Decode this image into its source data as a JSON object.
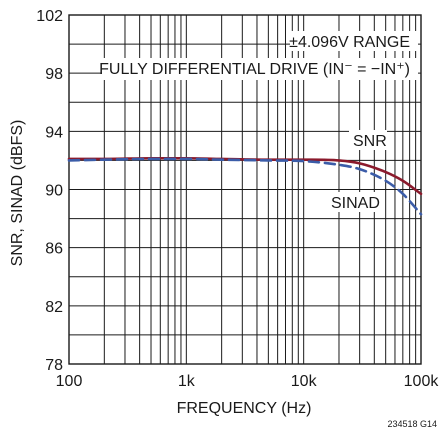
{
  "chart_data": {
    "type": "line",
    "xscale": "log",
    "xlim": [
      100,
      100000
    ],
    "ylim": [
      78,
      102
    ],
    "xlabel": "FREQUENCY (Hz)",
    "ylabel": "SNR, SINAD (dBFS)",
    "xticks": [
      100,
      1000,
      10000,
      100000
    ],
    "xtick_labels": [
      "100",
      "1k",
      "10k",
      "100k"
    ],
    "yticks": [
      78,
      82,
      86,
      90,
      94,
      98,
      102
    ],
    "ytick_labels": [
      "78",
      "82",
      "86",
      "90",
      "94",
      "98",
      "102"
    ],
    "grid": true,
    "series": [
      {
        "name": "SNR",
        "color": "#8b1a2c",
        "style": "solid",
        "x": [
          100,
          200,
          500,
          1000,
          2000,
          5000,
          10000,
          20000,
          30000,
          50000,
          70000,
          100000
        ],
        "y": [
          92.1,
          92.1,
          92.15,
          92.15,
          92.1,
          92.05,
          92.05,
          92.0,
          91.8,
          91.2,
          90.6,
          89.7
        ]
      },
      {
        "name": "SINAD",
        "color": "#3b5ca8",
        "style": "dashed",
        "x": [
          100,
          200,
          500,
          1000,
          2000,
          5000,
          10000,
          20000,
          30000,
          50000,
          70000,
          100000
        ],
        "y": [
          92.0,
          92.05,
          92.1,
          92.1,
          92.05,
          92.0,
          91.95,
          91.7,
          91.4,
          90.6,
          89.7,
          88.3
        ]
      }
    ],
    "annotations": {
      "range": "±4.096V RANGE",
      "drive": "FULLY DIFFERENTIAL DRIVE (IN⁻ = −IN⁺)",
      "snr_label": "SNR",
      "sinad_label": "SINAD"
    },
    "figure_id": "234518 G14"
  }
}
